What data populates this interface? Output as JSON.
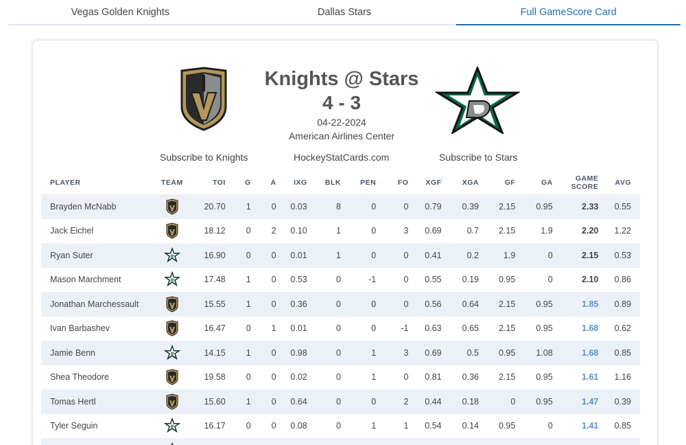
{
  "tabs": [
    {
      "label": "Vegas Golden Knights"
    },
    {
      "label": "Dallas Stars"
    },
    {
      "label": "Full GameScore Card",
      "active": true
    }
  ],
  "game": {
    "title": "Knights @ Stars",
    "score": "4 - 3",
    "date": "04-22-2024",
    "venue": "American Airlines Center"
  },
  "links": {
    "subscribe_knights": "Subscribe to Knights",
    "site": "HockeyStatCards.com",
    "subscribe_stars": "Subscribe to Stars"
  },
  "colors": {
    "vgk_gold": "#b4975a",
    "vgk_dark": "#2a2a2a",
    "dal_green": "#006847",
    "accent": "#1f6fb8",
    "gamescore_strong": "#2f4fb0",
    "gamescore_light": "#5b8fd0"
  },
  "table": {
    "headers": {
      "player": "PLAYER",
      "team": "TEAM",
      "toi": "TOI",
      "g": "G",
      "a": "A",
      "ixg": "IXG",
      "blk": "BLK",
      "pen": "PEN",
      "fo": "FO",
      "xgf": "XGF",
      "xga": "XGA",
      "gf": "GF",
      "ga": "GA",
      "gs_line1": "GAME",
      "gs_line2": "SCORE",
      "avg": "AVG"
    },
    "rows": [
      {
        "player": "Brayden McNabb",
        "team": "VGK",
        "toi": "20.70",
        "g": "1",
        "a": "0",
        "ixg": "0.03",
        "blk": "8",
        "pen": "0",
        "fo": "0",
        "xgf": "0.79",
        "xga": "0.39",
        "gf": "2.15",
        "ga": "0.95",
        "gs": "2.33",
        "avg": "0.55"
      },
      {
        "player": "Jack Eichel",
        "team": "VGK",
        "toi": "18.12",
        "g": "0",
        "a": "2",
        "ixg": "0.10",
        "blk": "1",
        "pen": "0",
        "fo": "3",
        "xgf": "0.69",
        "xga": "0.7",
        "gf": "2.15",
        "ga": "1.9",
        "gs": "2.20",
        "avg": "1.22"
      },
      {
        "player": "Ryan Suter",
        "team": "DAL",
        "toi": "16.90",
        "g": "0",
        "a": "0",
        "ixg": "0.01",
        "blk": "1",
        "pen": "0",
        "fo": "0",
        "xgf": "0.41",
        "xga": "0.2",
        "gf": "1.9",
        "ga": "0",
        "gs": "2.15",
        "avg": "0.53"
      },
      {
        "player": "Mason Marchment",
        "team": "DAL",
        "toi": "17.48",
        "g": "1",
        "a": "0",
        "ixg": "0.53",
        "blk": "0",
        "pen": "-1",
        "fo": "0",
        "xgf": "0.55",
        "xga": "0.19",
        "gf": "0.95",
        "ga": "0",
        "gs": "2.10",
        "avg": "0.86"
      },
      {
        "player": "Jonathan Marchessault",
        "team": "VGK",
        "toi": "15.55",
        "g": "1",
        "a": "0",
        "ixg": "0.36",
        "blk": "0",
        "pen": "0",
        "fo": "0",
        "xgf": "0.56",
        "xga": "0.64",
        "gf": "2.15",
        "ga": "0.95",
        "gs": "1.85",
        "avg": "0.89"
      },
      {
        "player": "Ivan Barbashev",
        "team": "VGK",
        "toi": "16.47",
        "g": "0",
        "a": "1",
        "ixg": "0.01",
        "blk": "0",
        "pen": "0",
        "fo": "-1",
        "xgf": "0.63",
        "xga": "0.65",
        "gf": "2.15",
        "ga": "0.95",
        "gs": "1.68",
        "avg": "0.62"
      },
      {
        "player": "Jamie Benn",
        "team": "DAL",
        "toi": "14.15",
        "g": "1",
        "a": "0",
        "ixg": "0.98",
        "blk": "0",
        "pen": "1",
        "fo": "3",
        "xgf": "0.69",
        "xga": "0.5",
        "gf": "0.95",
        "ga": "1.08",
        "gs": "1.68",
        "avg": "0.85"
      },
      {
        "player": "Shea Theodore",
        "team": "VGK",
        "toi": "19.58",
        "g": "0",
        "a": "0",
        "ixg": "0.02",
        "blk": "0",
        "pen": "1",
        "fo": "0",
        "xgf": "0.81",
        "xga": "0.36",
        "gf": "2.15",
        "ga": "0.95",
        "gs": "1.61",
        "avg": "1.16"
      },
      {
        "player": "Tomas Hertl",
        "team": "VGK",
        "toi": "15.60",
        "g": "1",
        "a": "0",
        "ixg": "0.64",
        "blk": "0",
        "pen": "0",
        "fo": "2",
        "xgf": "0.44",
        "xga": "0.18",
        "gf": "0",
        "ga": "0.95",
        "gs": "1.47",
        "avg": "0.39"
      },
      {
        "player": "Tyler Seguin",
        "team": "DAL",
        "toi": "16.17",
        "g": "0",
        "a": "0",
        "ixg": "0.08",
        "blk": "0",
        "pen": "1",
        "fo": "1",
        "xgf": "0.54",
        "xga": "0.14",
        "gf": "0.95",
        "ga": "0",
        "gs": "1.41",
        "avg": "0.85"
      },
      {
        "player": "",
        "team": "DAL",
        "toi": "",
        "g": "",
        "a": "",
        "ixg": "",
        "blk": "",
        "pen": "",
        "fo": "",
        "xgf": "",
        "xga": "",
        "gf": "",
        "ga": "",
        "gs": "",
        "avg": ""
      }
    ]
  }
}
